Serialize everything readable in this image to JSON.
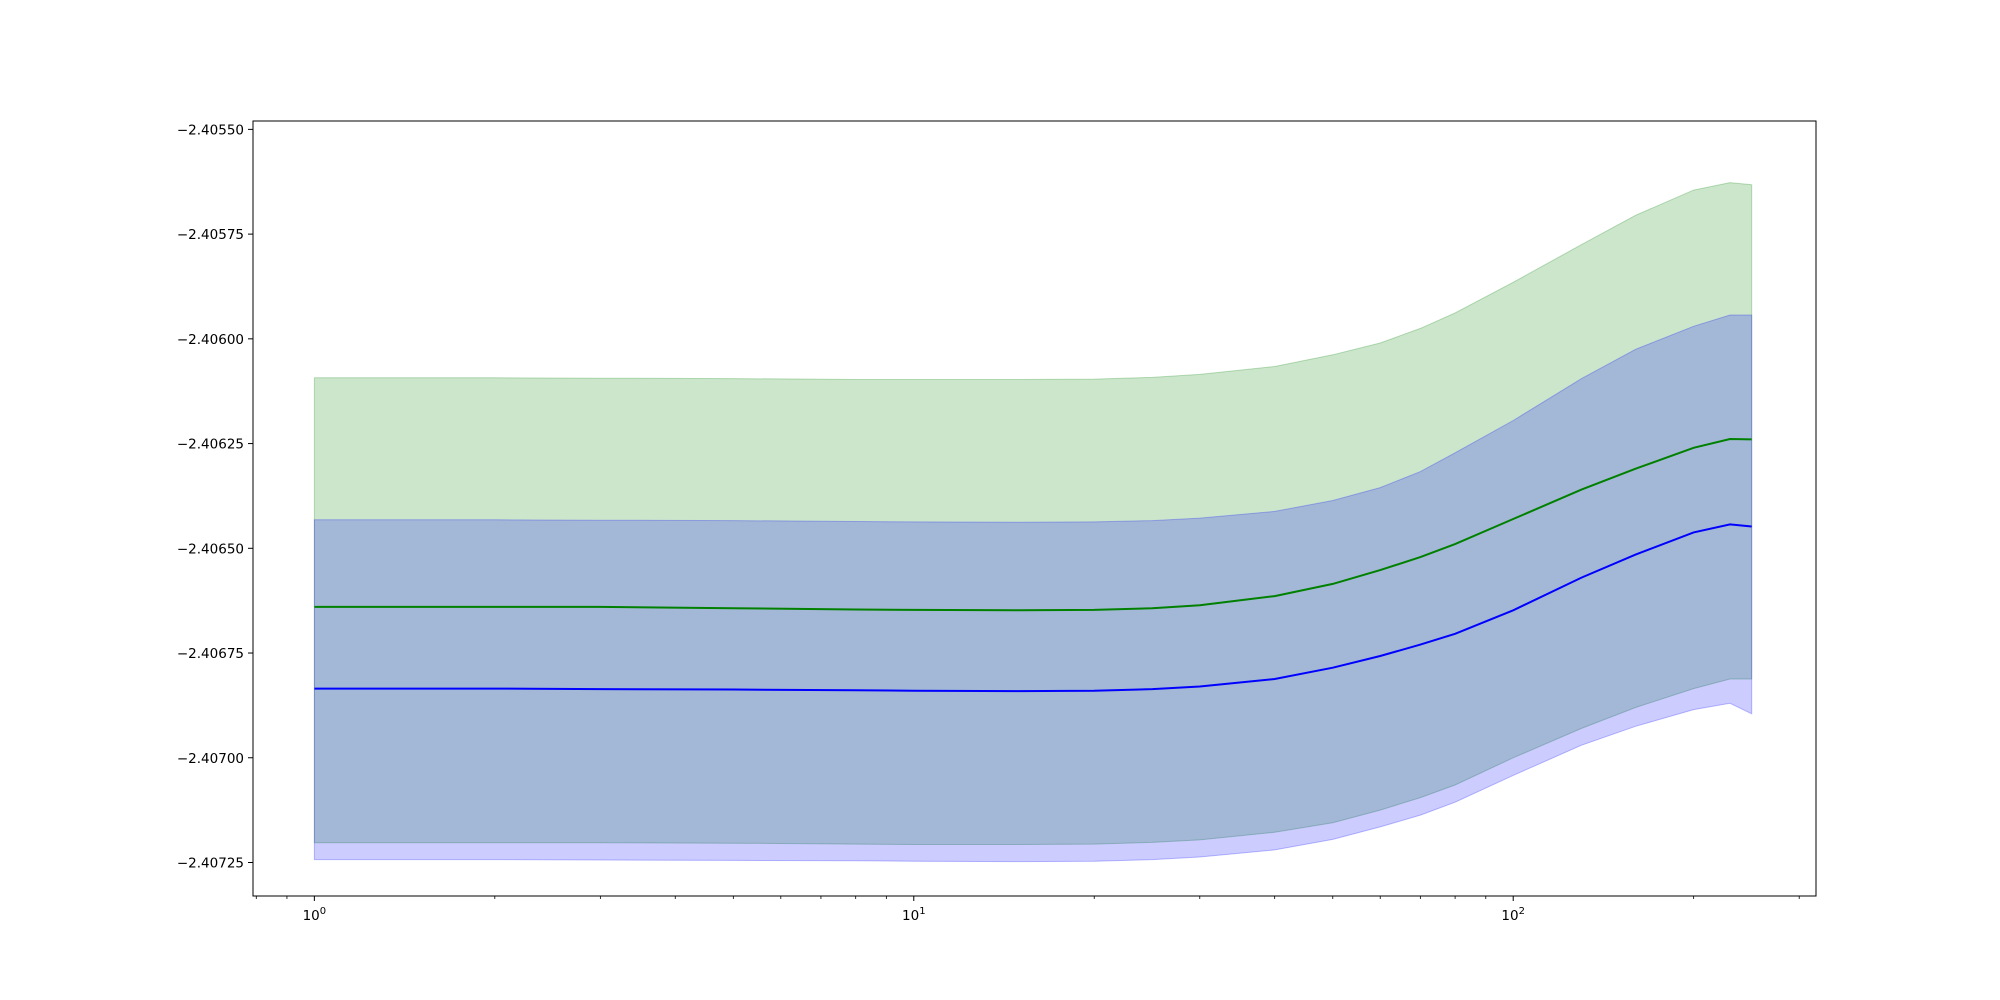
{
  "chart_data": {
    "type": "area",
    "title": "",
    "xlabel": "",
    "ylabel": "",
    "x_scale": "log",
    "xlim": [
      0.79,
      320
    ],
    "ylim": [
      -2.40733,
      -2.40548
    ],
    "grid": false,
    "legend": "none",
    "x_ticks": [
      {
        "value": 1,
        "base": "10",
        "exp": "0"
      },
      {
        "value": 10,
        "base": "10",
        "exp": "1"
      },
      {
        "value": 100,
        "base": "10",
        "exp": "2"
      }
    ],
    "y_ticks": [
      {
        "value": -2.4055,
        "label": "−2.40550"
      },
      {
        "value": -2.40575,
        "label": "−2.40575"
      },
      {
        "value": -2.406,
        "label": "−2.40600"
      },
      {
        "value": -2.40625,
        "label": "−2.40625"
      },
      {
        "value": -2.4065,
        "label": "−2.40650"
      },
      {
        "value": -2.40675,
        "label": "−2.40675"
      },
      {
        "value": -2.407,
        "label": "−2.40700"
      },
      {
        "value": -2.40725,
        "label": "−2.40725"
      }
    ],
    "x": [
      1,
      2,
      3,
      5,
      8,
      10,
      15,
      20,
      25,
      30,
      40,
      50,
      60,
      70,
      80,
      100,
      130,
      160,
      200,
      230,
      250
    ],
    "series": [
      {
        "color": "#008000",
        "band_color": "#008000",
        "band_opacity": 0.2,
        "values": [
          -2.40664,
          -2.40664,
          -2.40664,
          -2.406643,
          -2.406646,
          -2.406647,
          -2.406648,
          -2.406647,
          -2.406643,
          -2.406636,
          -2.406614,
          -2.406585,
          -2.406552,
          -2.406521,
          -2.40649,
          -2.40643,
          -2.40636,
          -2.40631,
          -2.40626,
          -2.406239,
          -2.40624
        ],
        "lower": [
          -2.407203,
          -2.407203,
          -2.407203,
          -2.407204,
          -2.407206,
          -2.407207,
          -2.407207,
          -2.407206,
          -2.407202,
          -2.407196,
          -2.407178,
          -2.407155,
          -2.407125,
          -2.407095,
          -2.407065,
          -2.407,
          -2.40693,
          -2.40688,
          -2.406835,
          -2.406812,
          -2.406812
        ],
        "upper": [
          -2.406093,
          -2.406093,
          -2.406094,
          -2.406095,
          -2.406097,
          -2.406097,
          -2.406097,
          -2.406096,
          -2.406092,
          -2.406085,
          -2.406066,
          -2.406038,
          -2.40601,
          -2.405975,
          -2.405938,
          -2.405865,
          -2.405775,
          -2.405705,
          -2.405645,
          -2.405627,
          -2.405632
        ]
      },
      {
        "color": "#0000ff",
        "band_color": "#0000ff",
        "band_opacity": 0.2,
        "values": [
          -2.406835,
          -2.406835,
          -2.406836,
          -2.406837,
          -2.406839,
          -2.40684,
          -2.406841,
          -2.40684,
          -2.406836,
          -2.40683,
          -2.406812,
          -2.406785,
          -2.406757,
          -2.40673,
          -2.406704,
          -2.406648,
          -2.40657,
          -2.406515,
          -2.406462,
          -2.406443,
          -2.406448
        ],
        "lower": [
          -2.407243,
          -2.407243,
          -2.407244,
          -2.407245,
          -2.407246,
          -2.407247,
          -2.407248,
          -2.407247,
          -2.407243,
          -2.407237,
          -2.40722,
          -2.407195,
          -2.407165,
          -2.407137,
          -2.407106,
          -2.407042,
          -2.40697,
          -2.406925,
          -2.406885,
          -2.40687,
          -2.406895
        ],
        "upper": [
          -2.406432,
          -2.406432,
          -2.406433,
          -2.406434,
          -2.406436,
          -2.406437,
          -2.406438,
          -2.406437,
          -2.406434,
          -2.406428,
          -2.406412,
          -2.406386,
          -2.406355,
          -2.406317,
          -2.406272,
          -2.406195,
          -2.406095,
          -2.406025,
          -2.40597,
          -2.405943,
          -2.405943
        ]
      }
    ]
  }
}
